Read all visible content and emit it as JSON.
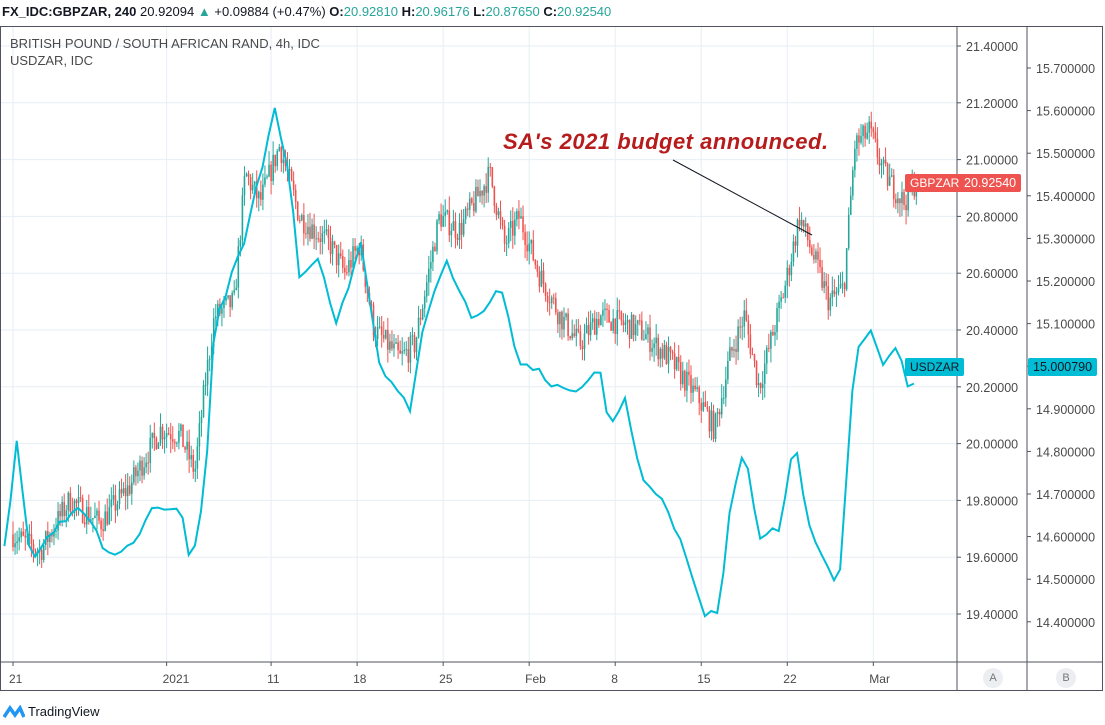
{
  "header": {
    "symbol": "FX_IDC:GBPZAR, 240",
    "last": "20.92094",
    "change": "+0.09884 (+0.47%)",
    "o_label": "O:",
    "o": "20.92810",
    "h_label": "H:",
    "h": "20.96176",
    "l_label": "L:",
    "l": "20.87650",
    "c_label": "C:",
    "c": "20.92540"
  },
  "legend": {
    "main": "BRITISH POUND / SOUTH AFRICAN RAND, 4h, IDC",
    "compare": "USDZAR, IDC"
  },
  "annotation": "SA's 2021 budget announced.",
  "tags": {
    "gbp_name": "GBPZAR",
    "gbp_price": "20.92540",
    "usd_name": "USDZAR",
    "usd_price": "15.000790"
  },
  "scale_buttons": {
    "a": "A",
    "b": "B"
  },
  "logo": "TradingView",
  "colors": {
    "up": "#26a69a",
    "down": "#ef5350",
    "usd": "#00bcd4",
    "annotation": "#b71c1c"
  },
  "chart_data": {
    "type": "candlestick+line",
    "x_unit": "days since Dec 21, 2020",
    "xticks": [
      {
        "label": "21",
        "day": 0
      },
      {
        "label": "2021",
        "day": 12.5
      },
      {
        "label": "11",
        "day": 21
      },
      {
        "label": "18",
        "day": 28
      },
      {
        "label": "25",
        "day": 35
      },
      {
        "label": "Feb",
        "day": 42
      },
      {
        "label": "8",
        "day": 49
      },
      {
        "label": "15",
        "day": 56
      },
      {
        "label": "22",
        "day": 63
      },
      {
        "label": "Mar",
        "day": 70
      }
    ],
    "axisA": {
      "name": "GBPZAR",
      "ylim": [
        19.3,
        21.45
      ],
      "ticks": [
        "21.40000",
        "21.20000",
        "21.00000",
        "20.80000",
        "20.60000",
        "20.40000",
        "20.20000",
        "20.00000",
        "19.80000",
        "19.60000",
        "19.40000"
      ]
    },
    "axisB": {
      "name": "USDZAR",
      "ylim": [
        14.35,
        15.75
      ],
      "ticks": [
        "15.700000",
        "15.600000",
        "15.500000",
        "15.400000",
        "15.300000",
        "15.200000",
        "15.100000",
        "15.000000",
        "14.900000",
        "14.800000",
        "14.700000",
        "14.600000",
        "14.500000",
        "14.400000"
      ]
    },
    "gbpzar_close": [
      [
        0,
        19.68
      ],
      [
        2.2,
        19.62
      ],
      [
        4.6,
        19.8
      ],
      [
        7.1,
        19.72
      ],
      [
        9.5,
        19.85
      ],
      [
        12,
        20.05
      ],
      [
        13.6,
        20.03
      ],
      [
        14.8,
        19.9
      ],
      [
        15.6,
        20.2
      ],
      [
        16.4,
        20.45
      ],
      [
        18,
        20.5
      ],
      [
        18.9,
        20.95
      ],
      [
        20.1,
        20.85
      ],
      [
        21.7,
        21.05
      ],
      [
        23.3,
        20.8
      ],
      [
        25.8,
        20.7
      ],
      [
        27,
        20.6
      ],
      [
        28.2,
        20.7
      ],
      [
        29.4,
        20.4
      ],
      [
        31.5,
        20.3
      ],
      [
        32.7,
        20.35
      ],
      [
        34.7,
        20.8
      ],
      [
        36.3,
        20.75
      ],
      [
        38.8,
        20.95
      ],
      [
        40,
        20.7
      ],
      [
        41.2,
        20.8
      ],
      [
        42.8,
        20.6
      ],
      [
        44.5,
        20.45
      ],
      [
        46.1,
        20.35
      ],
      [
        47.7,
        20.45
      ],
      [
        51,
        20.4
      ],
      [
        53.4,
        20.3
      ],
      [
        55.9,
        20.15
      ],
      [
        57.1,
        20.05
      ],
      [
        58.3,
        20.3
      ],
      [
        59.5,
        20.45
      ],
      [
        60.7,
        20.2
      ],
      [
        62.8,
        20.55
      ],
      [
        64,
        20.8
      ],
      [
        65.2,
        20.65
      ],
      [
        66.4,
        20.5
      ],
      [
        67.6,
        20.55
      ],
      [
        68.5,
        21.05
      ],
      [
        69.7,
        21.1
      ],
      [
        70.9,
        20.95
      ],
      [
        72.5,
        20.85
      ],
      [
        73.5,
        20.925
      ]
    ],
    "usdzar": [
      [
        -0.7,
        14.57
      ],
      [
        0.3,
        14.82
      ],
      [
        1.4,
        14.55
      ],
      [
        3,
        14.6
      ],
      [
        5.4,
        14.68
      ],
      [
        7.9,
        14.55
      ],
      [
        10.3,
        14.6
      ],
      [
        11.1,
        14.67
      ],
      [
        13.6,
        14.67
      ],
      [
        14.4,
        14.53
      ],
      [
        15.6,
        14.7
      ],
      [
        16.4,
        15.1
      ],
      [
        18.9,
        15.3
      ],
      [
        21.3,
        15.6
      ],
      [
        22.5,
        15.45
      ],
      [
        23.3,
        15.2
      ],
      [
        25,
        15.25
      ],
      [
        26.2,
        15.1
      ],
      [
        27.4,
        15.2
      ],
      [
        28.2,
        15.3
      ],
      [
        29.8,
        15.0
      ],
      [
        32.3,
        14.9
      ],
      [
        33.1,
        15.05
      ],
      [
        35.1,
        15.25
      ],
      [
        37.6,
        15.1
      ],
      [
        39.6,
        15.2
      ],
      [
        41.2,
        15.0
      ],
      [
        42.4,
        15.0
      ],
      [
        44.1,
        14.95
      ],
      [
        46.1,
        14.95
      ],
      [
        47.7,
        15.0
      ],
      [
        48.5,
        14.85
      ],
      [
        49.8,
        14.93
      ],
      [
        51,
        14.75
      ],
      [
        52.6,
        14.7
      ],
      [
        54.2,
        14.6
      ],
      [
        55.4,
        14.5
      ],
      [
        56.3,
        14.42
      ],
      [
        57.5,
        14.42
      ],
      [
        58.3,
        14.65
      ],
      [
        59.5,
        14.82
      ],
      [
        60.7,
        14.6
      ],
      [
        62.4,
        14.62
      ],
      [
        63.6,
        14.83
      ],
      [
        64.8,
        14.62
      ],
      [
        66,
        14.55
      ],
      [
        67.2,
        14.48
      ],
      [
        68.5,
        15.02
      ],
      [
        69.7,
        15.1
      ],
      [
        70.9,
        15.0
      ],
      [
        72.1,
        15.05
      ],
      [
        73.1,
        14.9
      ],
      [
        73.5,
        15.0
      ]
    ]
  }
}
